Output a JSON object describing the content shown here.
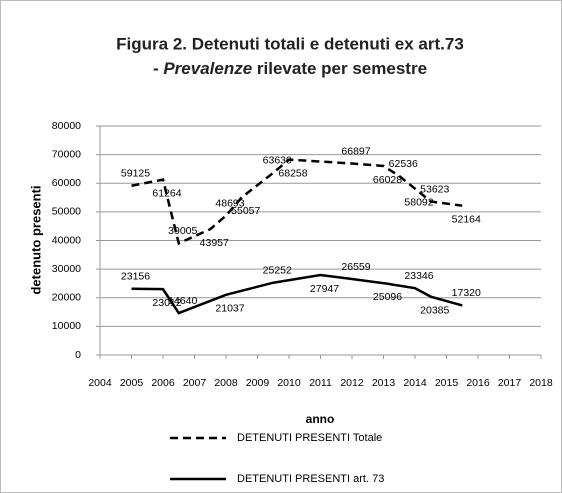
{
  "chart_data": {
    "type": "line",
    "title": "Figura 2. Detenuti totali e detenuti ex art.73",
    "subtitle_parts": [
      "- ",
      "Prevalenze",
      " rilevate per semestre"
    ],
    "xlabel": "anno",
    "ylabel": "detenuto presenti",
    "xlim": [
      2004,
      2018
    ],
    "xticks": [
      2004,
      2005,
      2006,
      2007,
      2008,
      2009,
      2010,
      2011,
      2012,
      2013,
      2014,
      2015,
      2016,
      2017,
      2018
    ],
    "ylim": [
      0,
      80000
    ],
    "yticks": [
      0,
      10000,
      20000,
      30000,
      40000,
      50000,
      60000,
      70000,
      80000
    ],
    "grid": true,
    "series": [
      {
        "name": "DETENUTI PRESENTI Totale",
        "color": "#000000",
        "dash": true,
        "x": [
          2005,
          2006,
          2006.5,
          2007.5,
          2008,
          2008.5,
          2009.5,
          2010,
          2012,
          2013,
          2013.5,
          2014,
          2014.5,
          2015.5
        ],
        "values": [
          59125,
          61264,
          39005,
          43957,
          48693,
          55057,
          63630,
          68258,
          66897,
          66028,
          62536,
          58092,
          53623,
          52164
        ]
      },
      {
        "name": "DETENUTI PRESENTI art. 73",
        "color": "#000000",
        "dash": false,
        "x": [
          2005,
          2006,
          2006.5,
          2008,
          2009.5,
          2011,
          2012,
          2013,
          2014,
          2014.5,
          2015.5
        ],
        "values": [
          23156,
          23012,
          14640,
          21037,
          25252,
          27947,
          26559,
          25096,
          23346,
          20385,
          17320
        ]
      }
    ]
  }
}
